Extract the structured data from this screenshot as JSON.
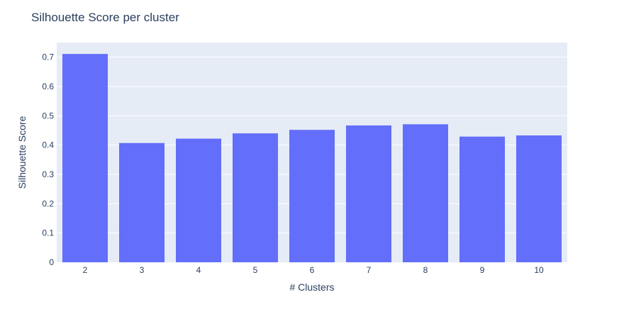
{
  "chart_data": {
    "type": "bar",
    "title": "Silhouette Score per cluster",
    "xlabel": "# Clusters",
    "ylabel": "Silhouette Score",
    "categories": [
      "2",
      "3",
      "4",
      "5",
      "6",
      "7",
      "8",
      "9",
      "10"
    ],
    "values": [
      0.711,
      0.407,
      0.422,
      0.44,
      0.452,
      0.467,
      0.471,
      0.429,
      0.433
    ],
    "ylim": [
      0,
      0.75
    ],
    "yticks": [
      0,
      0.1,
      0.2,
      0.3,
      0.4,
      0.5,
      0.6,
      0.7
    ],
    "ytick_labels": [
      "0",
      "0.1",
      "0.2",
      "0.3",
      "0.4",
      "0.5",
      "0.6",
      "0.7"
    ],
    "grid": true,
    "colors": {
      "bar": "#636efa",
      "plot_bg": "#e5ecf6",
      "grid": "#ffffff",
      "text": "#2a3f5f"
    }
  }
}
